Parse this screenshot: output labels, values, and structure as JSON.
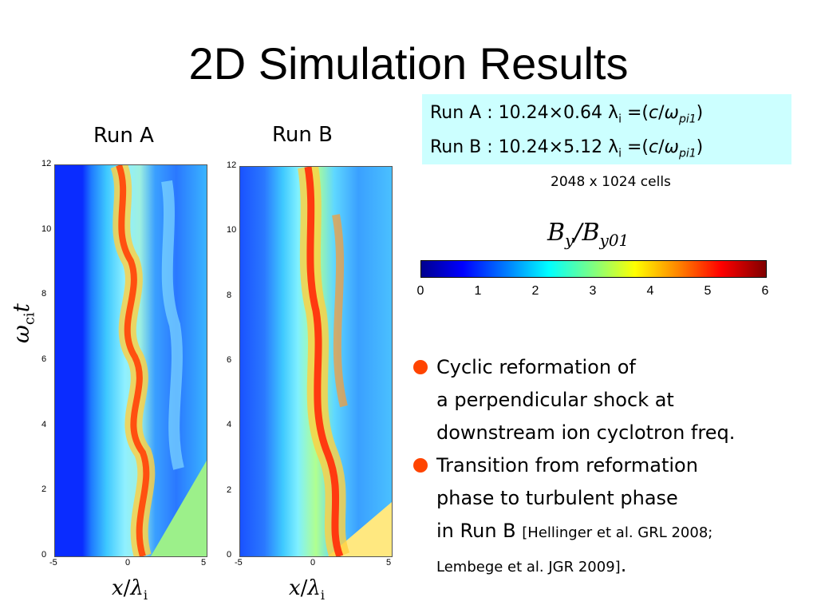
{
  "slide": {
    "title": "2D Simulation Results"
  },
  "runs": {
    "a_label": "Run A",
    "b_label": "Run B"
  },
  "infobox": {
    "line1_prefix": "Run A : 10.24",
    "line1_val": "0.64",
    "line2_prefix": "Run B : 10.24",
    "line2_val": "5.12",
    "times": "×",
    "lambda": "λ",
    "sub_i": "i",
    "eq": " =(",
    "c": "c",
    "slash": "/",
    "omega": "ω",
    "sub_pi1": "pi1",
    "close": ")"
  },
  "cells": "2048 x 1024 cells",
  "colorbar": {
    "title_b": "B",
    "title_sub_y": "y",
    "title_slash": "/",
    "title_sub_y01": "y01",
    "ticks": [
      "0",
      "1",
      "2",
      "3",
      "4",
      "5",
      "6"
    ],
    "colors": [
      "#00008f",
      "#0000ff",
      "#0080ff",
      "#00ffff",
      "#80ff80",
      "#ffff00",
      "#ff8000",
      "#ff0000",
      "#800000"
    ]
  },
  "bullets": [
    {
      "lines": [
        "Cyclic reformation of",
        "a perpendicular shock at",
        "downstream ion cyclotron freq."
      ]
    },
    {
      "lines": [
        "Transition from reformation",
        "phase to turbulent phase"
      ],
      "last_main": "in Run B",
      "ref_line1": "[Hellinger et al. GRL 2008;",
      "ref_line2": "Lembege et al. JGR 2009]",
      "end": "."
    }
  ],
  "axes": {
    "y_ticks": [
      "12",
      "10",
      "8",
      "6",
      "4",
      "2",
      "0"
    ],
    "x_ticks": [
      "-5",
      "0",
      "5"
    ],
    "x_label_x": "x",
    "x_label_slash": "/",
    "x_label_lambda": "λ",
    "x_label_sub": "i",
    "y_label_omega": "ω",
    "y_label_sub": "ci",
    "y_label_t": "t"
  }
}
